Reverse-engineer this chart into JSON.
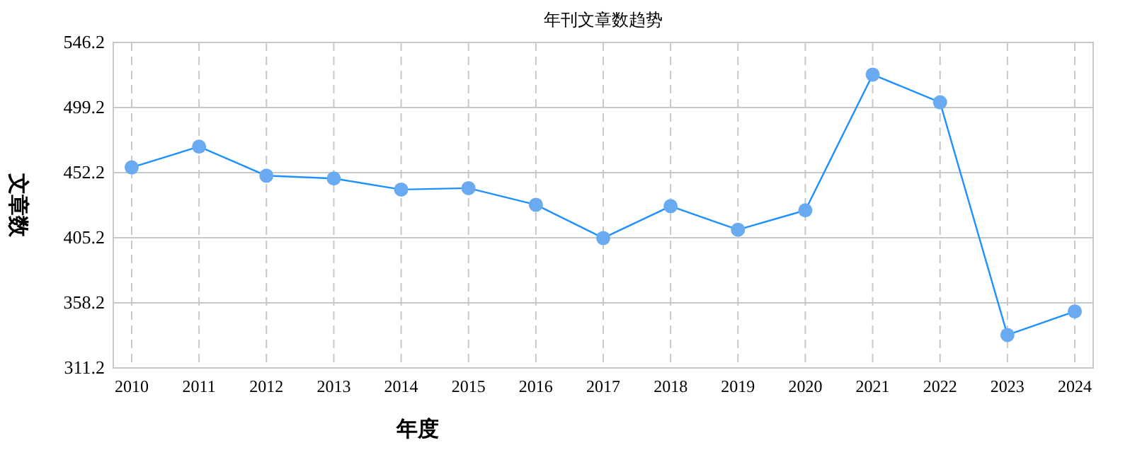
{
  "chart_data": {
    "type": "line",
    "title": "年刊文章数趋势",
    "xlabel": "年度",
    "ylabel": "文章数",
    "categories": [
      "2010",
      "2011",
      "2012",
      "2013",
      "2014",
      "2015",
      "2016",
      "2017",
      "2018",
      "2019",
      "2020",
      "2021",
      "2022",
      "2023",
      "2024"
    ],
    "series": [
      {
        "color": "#1e90ff",
        "values": [
          456,
          471,
          450,
          448,
          440,
          441,
          429,
          405,
          428,
          411,
          425,
          523,
          503,
          335,
          352
        ]
      }
    ],
    "ylim": [
      311.2,
      546.2
    ],
    "yticks": [
      311.2,
      358.2,
      405.2,
      452.2,
      499.2,
      546.2
    ],
    "grid": true,
    "marker": "circle",
    "line_style": "solid"
  }
}
